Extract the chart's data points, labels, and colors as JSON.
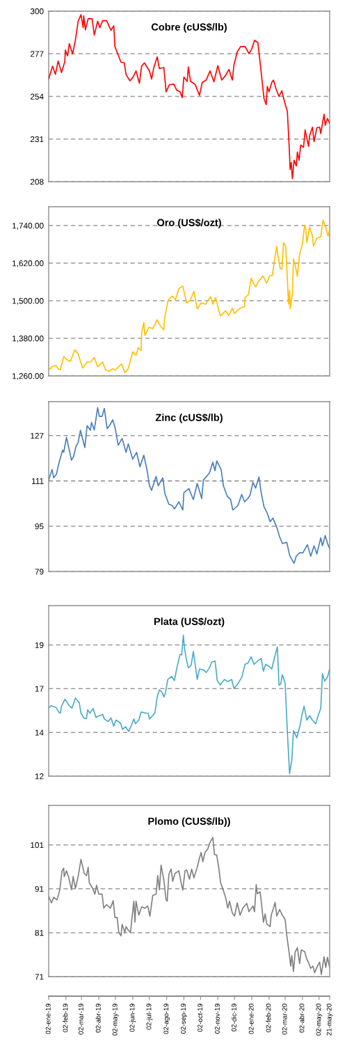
{
  "chart_data": [
    {
      "type": "line",
      "title": "Cobre (cUS$/lb)",
      "xlim": [
        "2019-01-02",
        "2020-05-21"
      ],
      "ylim": [
        208,
        300
      ],
      "yticks": [
        208,
        231,
        254,
        277,
        300
      ],
      "grid": "y",
      "tick_labels": "y",
      "x": [
        "2019-01-02",
        "2019-01-09",
        "2019-01-14",
        "2019-01-19",
        "2019-01-25",
        "2019-01-31",
        "2019-02-01",
        "2019-02-05",
        "2019-02-08",
        "2019-02-14",
        "2019-02-19",
        "2019-02-24",
        "2019-03-01",
        "2019-03-05",
        "2019-03-06",
        "2019-03-09",
        "2019-03-14",
        "2019-03-21",
        "2019-03-25",
        "2019-03-31",
        "2019-04-04",
        "2019-04-09",
        "2019-04-16",
        "2019-04-24",
        "2019-04-29",
        "2019-05-01",
        "2019-05-06",
        "2019-05-12",
        "2019-05-18",
        "2019-05-21",
        "2019-05-28",
        "2019-06-03",
        "2019-06-08",
        "2019-06-14",
        "2019-06-18",
        "2019-06-23",
        "2019-07-02",
        "2019-07-06",
        "2019-07-10",
        "2019-07-16",
        "2019-07-20",
        "2019-07-28",
        "2019-08-01",
        "2019-08-07",
        "2019-08-15",
        "2019-08-20",
        "2019-08-26",
        "2019-08-30",
        "2019-09-02",
        "2019-09-08",
        "2019-09-10",
        "2019-09-14",
        "2019-09-22",
        "2019-09-30",
        "2019-10-05",
        "2019-10-12",
        "2019-10-19",
        "2019-10-26",
        "2019-11-02",
        "2019-11-09",
        "2019-11-16",
        "2019-11-22",
        "2019-11-28",
        "2019-12-01",
        "2019-12-07",
        "2019-12-13",
        "2019-12-21",
        "2019-12-28",
        "2020-01-02",
        "2020-01-07",
        "2020-01-13",
        "2020-01-18",
        "2020-01-24",
        "2020-01-28",
        "2020-01-30",
        "2020-02-02",
        "2020-02-07",
        "2020-02-10",
        "2020-02-15",
        "2020-02-20",
        "2020-02-25",
        "2020-03-01",
        "2020-03-06",
        "2020-03-09",
        "2020-03-11",
        "2020-03-13",
        "2020-03-15",
        "2020-03-18",
        "2020-03-22",
        "2020-03-24",
        "2020-03-27",
        "2020-03-30",
        "2020-04-04",
        "2020-04-07",
        "2020-04-13",
        "2020-04-15",
        "2020-04-20",
        "2020-04-23",
        "2020-04-28",
        "2020-05-03",
        "2020-05-05",
        "2020-05-11",
        "2020-05-13",
        "2020-05-17",
        "2020-05-21"
      ],
      "series": [
        {
          "color": "#ff0000",
          "values": [
            263.4,
            270.3,
            265.9,
            273.1,
            266.9,
            272.8,
            279.0,
            275.9,
            282.5,
            276.9,
            284.4,
            294.6,
            298.1,
            291.1,
            297.4,
            289.9,
            295.9,
            295.9,
            287.1,
            294.6,
            291.1,
            294.9,
            294.9,
            289.6,
            292.1,
            280.9,
            277.1,
            272.4,
            272.1,
            265.9,
            262.4,
            264.6,
            267.8,
            261.1,
            270.3,
            272.1,
            267.8,
            263.4,
            269.6,
            275.3,
            269.0,
            269.6,
            256.5,
            260.3,
            260.6,
            257.4,
            256.5,
            253.4,
            264.4,
            262.1,
            269.9,
            262.1,
            260.6,
            254.6,
            261.5,
            262.8,
            267.8,
            261.9,
            270.6,
            262.8,
            265.3,
            268.6,
            262.8,
            270.9,
            278.1,
            280.9,
            280.9,
            277.1,
            279.6,
            284.3,
            283.0,
            269.6,
            252.8,
            249.6,
            259.4,
            256.5,
            261.5,
            262.8,
            257.8,
            254.0,
            257.1,
            250.9,
            245.9,
            228.4,
            214.6,
            218.4,
            209.6,
            219.6,
            216.5,
            224.0,
            219.6,
            227.8,
            226.5,
            235.9,
            227.1,
            232.8,
            237.4,
            229.6,
            237.1,
            237.4,
            234.0,
            244.4,
            238.4,
            242.1,
            239.6
          ]
        }
      ]
    },
    {
      "type": "line",
      "title": "Oro (US$/ozt)",
      "xlim": [
        "2019-01-02",
        "2020-05-21"
      ],
      "ylim": [
        1260,
        1800
      ],
      "yticks": [
        {
          "value": 1260,
          "label": "1,260.00"
        },
        {
          "value": 1380,
          "label": "1,380.00"
        },
        {
          "value": 1500,
          "label": "1,500.00"
        },
        {
          "value": 1620,
          "label": "1,620.00"
        },
        {
          "value": 1740,
          "label": "1,740.00"
        }
      ],
      "grid": "y",
      "tick_labels": "y",
      "x": [
        "2019-01-02",
        "2019-01-04",
        "2019-01-08",
        "2019-01-15",
        "2019-01-20",
        "2019-01-23",
        "2019-01-29",
        "2019-02-04",
        "2019-02-10",
        "2019-02-18",
        "2019-02-24",
        "2019-03-04",
        "2019-03-12",
        "2019-03-19",
        "2019-03-25",
        "2019-03-31",
        "2019-04-09",
        "2019-04-14",
        "2019-04-21",
        "2019-04-27",
        "2019-05-01",
        "2019-05-13",
        "2019-05-19",
        "2019-05-25",
        "2019-06-02",
        "2019-06-08",
        "2019-06-12",
        "2019-06-17",
        "2019-06-18",
        "2019-06-22",
        "2019-06-24",
        "2019-07-01",
        "2019-07-08",
        "2019-07-16",
        "2019-07-22",
        "2019-07-28",
        "2019-07-29",
        "2019-08-04",
        "2019-08-06",
        "2019-08-12",
        "2019-08-18",
        "2019-08-24",
        "2019-08-31",
        "2019-09-07",
        "2019-09-13",
        "2019-09-20",
        "2019-09-26",
        "2019-10-03",
        "2019-10-11",
        "2019-10-20",
        "2019-10-24",
        "2019-10-29",
        "2019-11-04",
        "2019-11-07",
        "2019-11-16",
        "2019-11-22",
        "2019-11-28",
        "2019-12-02",
        "2019-12-12",
        "2019-12-20",
        "2019-12-21",
        "2019-12-27",
        "2020-01-01",
        "2020-01-05",
        "2020-01-09",
        "2020-01-13",
        "2020-01-22",
        "2020-01-29",
        "2020-02-03",
        "2020-02-08",
        "2020-02-11",
        "2020-02-16",
        "2020-02-18",
        "2020-02-22",
        "2020-02-25",
        "2020-02-28",
        "2020-03-03",
        "2020-03-06",
        "2020-03-08",
        "2020-03-10",
        "2020-03-11",
        "2020-03-15",
        "2020-03-17",
        "2020-03-20",
        "2020-03-24",
        "2020-03-28",
        "2020-04-02",
        "2020-04-06",
        "2020-04-08",
        "2020-04-10",
        "2020-04-15",
        "2020-04-20",
        "2020-04-22",
        "2020-04-28",
        "2020-05-05",
        "2020-05-09",
        "2020-05-14",
        "2020-05-18",
        "2020-05-21"
      ],
      "series": [
        {
          "color": "#ffc000",
          "values": [
            1289,
            1281,
            1290,
            1293,
            1281,
            1280,
            1322,
            1311,
            1307,
            1343,
            1330,
            1285,
            1304,
            1305,
            1319,
            1289,
            1304,
            1280,
            1274,
            1283,
            1278,
            1298,
            1270,
            1283,
            1337,
            1326,
            1350,
            1341,
            1396,
            1431,
            1389,
            1415,
            1411,
            1439,
            1419,
            1407,
            1441,
            1496,
            1505,
            1515,
            1504,
            1539,
            1547,
            1493,
            1500,
            1530,
            1474,
            1493,
            1489,
            1513,
            1489,
            1510,
            1467,
            1452,
            1468,
            1453,
            1476,
            1459,
            1476,
            1481,
            1511,
            1519,
            1572,
            1556,
            1544,
            1559,
            1579,
            1556,
            1579,
            1581,
            1622,
            1673,
            1644,
            1604,
            1600,
            1685,
            1674,
            1570,
            1489,
            1533,
            1474,
            1522,
            1633,
            1615,
            1578,
            1648,
            1681,
            1741,
            1730,
            1685,
            1735,
            1707,
            1674,
            1700,
            1704,
            1757,
            1735,
            1707,
            1727
          ]
        }
      ]
    },
    {
      "type": "line",
      "title": "Zinc (cUS$/lb)",
      "xlim": [
        "2019-01-02",
        "2020-05-21"
      ],
      "ylim": [
        79,
        139
      ],
      "yticks": [
        79,
        95,
        111,
        127
      ],
      "grid": "y",
      "tick_labels": "y",
      "x": [
        "2019-01-02",
        "2019-01-08",
        "2019-01-11",
        "2019-01-16",
        "2019-01-20",
        "2019-01-27",
        "2019-01-29",
        "2019-02-03",
        "2019-02-08",
        "2019-02-12",
        "2019-02-16",
        "2019-02-20",
        "2019-02-24",
        "2019-02-28",
        "2019-03-08",
        "2019-03-12",
        "2019-03-18",
        "2019-03-20",
        "2019-03-25",
        "2019-03-31",
        "2019-04-03",
        "2019-04-08",
        "2019-04-12",
        "2019-04-17",
        "2019-04-22",
        "2019-04-27",
        "2019-05-01",
        "2019-05-07",
        "2019-05-14",
        "2019-05-21",
        "2019-05-25",
        "2019-06-02",
        "2019-06-09",
        "2019-06-15",
        "2019-06-22",
        "2019-06-28",
        "2019-07-02",
        "2019-07-06",
        "2019-07-14",
        "2019-07-18",
        "2019-07-26",
        "2019-07-30",
        "2019-08-06",
        "2019-08-12",
        "2019-08-16",
        "2019-08-24",
        "2019-08-31",
        "2019-09-02",
        "2019-09-11",
        "2019-09-19",
        "2019-09-26",
        "2019-10-04",
        "2019-10-07",
        "2019-10-18",
        "2019-10-24",
        "2019-10-28",
        "2019-10-31",
        "2019-11-08",
        "2019-11-12",
        "2019-11-19",
        "2019-11-25",
        "2019-11-29",
        "2019-12-08",
        "2019-12-15",
        "2019-12-20",
        "2019-12-26",
        "2019-12-30",
        "2020-01-04",
        "2020-01-09",
        "2020-01-15",
        "2020-01-19",
        "2020-01-24",
        "2020-01-30",
        "2020-02-04",
        "2020-02-09",
        "2020-02-16",
        "2020-02-21",
        "2020-02-26",
        "2020-03-05",
        "2020-03-10",
        "2020-03-13",
        "2020-03-18",
        "2020-03-22",
        "2020-03-28",
        "2020-04-03",
        "2020-04-11",
        "2020-04-17",
        "2020-04-23",
        "2020-04-28",
        "2020-05-05",
        "2020-05-08",
        "2020-05-13",
        "2020-05-17",
        "2020-05-21"
      ],
      "series": [
        {
          "color": "#4a7ebb",
          "values": [
            111.3,
            115.0,
            112.1,
            113.4,
            117.0,
            121.9,
            121.1,
            126.4,
            121.9,
            118.3,
            119.7,
            123.2,
            124.6,
            128.9,
            122.8,
            130.5,
            128.9,
            131.7,
            129.0,
            136.9,
            133.8,
            133.8,
            136.6,
            129.5,
            130.7,
            132.6,
            130.1,
            123.6,
            126.0,
            121.1,
            124.1,
            118.7,
            121.1,
            116.0,
            120.1,
            114.6,
            109.4,
            107.7,
            112.6,
            109.3,
            112.1,
            106.4,
            102.8,
            102.3,
            101.1,
            103.6,
            100.7,
            106.8,
            108.3,
            104.4,
            110.1,
            104.8,
            111.3,
            113.8,
            117.6,
            114.6,
            118.1,
            115.0,
            109.3,
            105.6,
            104.4,
            100.7,
            102.3,
            106.2,
            103.6,
            104.8,
            106.0,
            110.5,
            108.5,
            112.4,
            106.8,
            101.9,
            99.5,
            96.6,
            97.9,
            94.6,
            91.3,
            88.9,
            89.3,
            84.8,
            83.6,
            81.9,
            84.4,
            85.6,
            85.6,
            88.5,
            84.4,
            88.1,
            85.2,
            90.9,
            88.1,
            91.7,
            89.0,
            87.1
          ]
        }
      ]
    },
    {
      "type": "line",
      "title": "Plata (US$/ozt)",
      "xlim": [
        "2019-01-02",
        "2020-05-21"
      ],
      "ylim": [
        12,
        21.1
      ],
      "yticks": [
        12,
        {
          "value": 14.33,
          "label": "14"
        },
        {
          "value": 16.67,
          "label": "17"
        },
        19
      ],
      "grid": "y",
      "tick_labels": "y",
      "x": [
        "2019-01-02",
        "2019-01-06",
        "2019-01-15",
        "2019-01-20",
        "2019-01-23",
        "2019-01-25",
        "2019-01-31",
        "2019-02-04",
        "2019-02-07",
        "2019-02-13",
        "2019-02-19",
        "2019-02-26",
        "2019-03-01",
        "2019-03-07",
        "2019-03-11",
        "2019-03-13",
        "2019-03-17",
        "2019-03-23",
        "2019-03-28",
        "2019-04-02",
        "2019-04-09",
        "2019-04-12",
        "2019-04-19",
        "2019-04-24",
        "2019-04-29",
        "2019-05-03",
        "2019-05-11",
        "2019-05-15",
        "2019-05-20",
        "2019-05-26",
        "2019-05-31",
        "2019-06-04",
        "2019-06-07",
        "2019-06-13",
        "2019-06-17",
        "2019-06-26",
        "2019-06-30",
        "2019-07-02",
        "2019-07-08",
        "2019-07-12",
        "2019-07-16",
        "2019-07-20",
        "2019-07-25",
        "2019-07-28",
        "2019-07-31",
        "2019-08-04",
        "2019-08-11",
        "2019-08-16",
        "2019-08-20",
        "2019-08-26",
        "2019-08-29",
        "2019-09-01",
        "2019-09-03",
        "2019-09-07",
        "2019-09-10",
        "2019-09-15",
        "2019-09-19",
        "2019-09-26",
        "2019-09-30",
        "2019-10-08",
        "2019-10-12",
        "2019-10-18",
        "2019-10-22",
        "2019-10-28",
        "2019-11-01",
        "2019-11-06",
        "2019-11-14",
        "2019-11-20",
        "2019-11-27",
        "2019-12-01",
        "2019-12-09",
        "2019-12-15",
        "2019-12-21",
        "2019-12-26",
        "2020-01-01",
        "2020-01-06",
        "2020-01-13",
        "2020-01-19",
        "2020-01-23",
        "2020-01-27",
        "2020-02-03",
        "2020-02-07",
        "2020-02-12",
        "2020-02-17",
        "2020-02-20",
        "2020-02-23",
        "2020-02-26",
        "2020-03-02",
        "2020-03-06",
        "2020-03-10",
        "2020-03-14",
        "2020-03-17",
        "2020-03-20",
        "2020-03-23",
        "2020-03-29",
        "2020-04-01",
        "2020-04-05",
        "2020-04-10",
        "2020-04-15",
        "2020-04-20",
        "2020-04-26",
        "2020-05-01",
        "2020-05-05",
        "2020-05-08",
        "2020-05-12",
        "2020-05-17",
        "2020-05-21"
      ],
      "series": [
        {
          "color": "#4bacc6",
          "values": [
            15.63,
            15.76,
            15.67,
            15.42,
            15.36,
            15.73,
            16.1,
            15.95,
            15.79,
            15.63,
            16.17,
            15.92,
            15.36,
            15.08,
            15.08,
            15.54,
            15.36,
            15.61,
            15.13,
            15.21,
            15.3,
            15.05,
            14.92,
            15.11,
            14.67,
            14.99,
            14.84,
            14.49,
            14.64,
            14.39,
            14.74,
            15.05,
            14.8,
            14.99,
            15.42,
            15.36,
            15.36,
            15.05,
            15.23,
            15.38,
            16.23,
            16.6,
            16.48,
            16.23,
            16.45,
            17.16,
            17.32,
            17.1,
            17.72,
            18.49,
            18.47,
            19.52,
            18.84,
            18.15,
            17.78,
            17.91,
            18.65,
            17.16,
            17.72,
            17.66,
            17.53,
            17.78,
            18.09,
            18.15,
            17.1,
            16.87,
            17.16,
            17.04,
            17.16,
            16.67,
            16.97,
            17.28,
            17.97,
            18.03,
            18.37,
            17.97,
            18.15,
            18.28,
            17.6,
            17.97,
            17.84,
            17.72,
            18.34,
            18.9,
            16.85,
            16.91,
            17.41,
            16.97,
            14.36,
            12.13,
            12.87,
            14.43,
            14.24,
            14.05,
            14.74,
            15.23,
            15.73,
            14.99,
            15.23,
            14.99,
            14.8,
            15.3,
            15.61,
            17.47,
            17.07,
            17.28,
            17.72
          ]
        }
      ]
    },
    {
      "type": "line",
      "title": "Plomo (CUS$/lb))",
      "xlim": [
        "2019-01-02",
        "2020-05-21"
      ],
      "ylim": [
        71,
        110
      ],
      "yticks": [
        71,
        81,
        91,
        101
      ],
      "grid": "y",
      "xticks": [
        {
          "value": "2019-01-02",
          "label": "02-ene-19"
        },
        {
          "value": "2019-02-02",
          "label": "02-feb-19"
        },
        {
          "value": "2019-03-02",
          "label": "02-mar-19"
        },
        {
          "value": "2019-04-02",
          "label": "02-abr-19"
        },
        {
          "value": "2019-05-02",
          "label": "02-may-19"
        },
        {
          "value": "2019-06-02",
          "label": "02-jun-19"
        },
        {
          "value": "2019-07-02",
          "label": "02-jul-19"
        },
        {
          "value": "2019-08-02",
          "label": "02-ago-19"
        },
        {
          "value": "2019-09-02",
          "label": "02-sep-19"
        },
        {
          "value": "2019-10-02",
          "label": "02-oct-19"
        },
        {
          "value": "2019-11-02",
          "label": "02-nov-19"
        },
        {
          "value": "2019-12-02",
          "label": "02-dic-19"
        },
        {
          "value": "2020-01-02",
          "label": "02-ene-20"
        },
        {
          "value": "2020-02-02",
          "label": "02-feb-20"
        },
        {
          "value": "2020-03-02",
          "label": "02-mar-20"
        },
        {
          "value": "2020-04-02",
          "label": "02-abr-20"
        },
        {
          "value": "2020-05-02",
          "label": "02-may-20"
        },
        {
          "value": "2020-05-21",
          "label": "21-may-20"
        }
      ],
      "x": [
        "2019-01-02",
        "2019-01-07",
        "2019-01-11",
        "2019-01-17",
        "2019-01-22",
        "2019-01-26",
        "2019-01-29",
        "2019-01-30",
        "2019-02-03",
        "2019-02-07",
        "2019-02-12",
        "2019-02-15",
        "2019-02-19",
        "2019-02-24",
        "2019-03-01",
        "2019-03-07",
        "2019-03-11",
        "2019-03-14",
        "2019-03-16",
        "2019-03-22",
        "2019-03-26",
        "2019-03-29",
        "2019-04-02",
        "2019-04-08",
        "2019-04-11",
        "2019-04-16",
        "2019-04-23",
        "2019-04-28",
        "2019-05-01",
        "2019-05-05",
        "2019-05-08",
        "2019-05-12",
        "2019-05-14",
        "2019-05-19",
        "2019-05-21",
        "2019-05-25",
        "2019-05-29",
        "2019-06-04",
        "2019-06-06",
        "2019-06-08",
        "2019-06-13",
        "2019-06-18",
        "2019-06-24",
        "2019-06-29",
        "2019-07-03",
        "2019-07-08",
        "2019-07-14",
        "2019-07-17",
        "2019-07-20",
        "2019-07-23",
        "2019-07-28",
        "2019-08-01",
        "2019-08-03",
        "2019-08-06",
        "2019-08-10",
        "2019-08-13",
        "2019-08-17",
        "2019-08-24",
        "2019-08-28",
        "2019-08-31",
        "2019-09-04",
        "2019-09-07",
        "2019-09-12",
        "2019-09-16",
        "2019-09-20",
        "2019-09-26",
        "2019-09-30",
        "2019-10-03",
        "2019-10-06",
        "2019-10-10",
        "2019-10-15",
        "2019-10-18",
        "2019-10-24",
        "2019-10-27",
        "2019-10-31",
        "2019-11-04",
        "2019-11-07",
        "2019-11-12",
        "2019-11-16",
        "2019-11-20",
        "2019-11-23",
        "2019-11-28",
        "2019-12-02",
        "2019-12-07",
        "2019-12-12",
        "2019-12-17",
        "2019-12-24",
        "2019-12-28",
        "2020-01-04",
        "2020-01-07",
        "2020-01-10",
        "2020-01-12",
        "2020-01-17",
        "2020-01-20",
        "2020-01-23",
        "2020-01-26",
        "2020-01-29",
        "2020-02-04",
        "2020-02-06",
        "2020-02-10",
        "2020-02-13",
        "2020-02-16",
        "2020-02-21",
        "2020-02-26",
        "2020-03-02",
        "2020-03-05",
        "2020-03-09",
        "2020-03-12",
        "2020-03-14",
        "2020-03-17",
        "2020-03-20",
        "2020-03-24",
        "2020-03-28",
        "2020-03-31",
        "2020-04-06",
        "2020-04-10",
        "2020-04-13",
        "2020-04-17",
        "2020-04-21",
        "2020-04-24",
        "2020-04-29",
        "2020-05-03",
        "2020-05-06",
        "2020-05-11",
        "2020-05-14",
        "2020-05-17",
        "2020-05-21"
      ],
      "series": [
        {
          "color": "#808080",
          "values": [
            89.3,
            87.8,
            89.1,
            88.5,
            90.8,
            95.1,
            95.7,
            93.8,
            95.1,
            93.6,
            90.8,
            93.8,
            91.1,
            93.8,
            97.7,
            94.5,
            94.0,
            95.9,
            92.4,
            91.1,
            89.8,
            91.8,
            89.8,
            89.8,
            86.6,
            87.4,
            86.6,
            88.3,
            84.5,
            84.5,
            81.1,
            80.3,
            82.9,
            81.1,
            82.4,
            81.6,
            81.1,
            88.2,
            83.4,
            88.2,
            85.0,
            86.9,
            86.6,
            87.1,
            84.8,
            89.5,
            89.8,
            94.0,
            90.8,
            96.4,
            93.0,
            88.5,
            88.2,
            94.3,
            95.5,
            92.7,
            94.5,
            95.1,
            92.4,
            90.7,
            95.1,
            95.3,
            93.2,
            95.5,
            93.5,
            95.9,
            98.0,
            99.3,
            97.2,
            99.3,
            100.1,
            101.3,
            102.7,
            98.8,
            98.7,
            95.6,
            92.4,
            90.6,
            89.0,
            86.6,
            88.2,
            85.5,
            84.8,
            87.8,
            85.0,
            86.6,
            87.7,
            85.8,
            87.1,
            85.8,
            92.0,
            89.9,
            90.3,
            87.1,
            83.4,
            85.3,
            83.0,
            82.4,
            85.0,
            86.6,
            87.9,
            84.8,
            86.3,
            85.0,
            84.0,
            80.3,
            76.6,
            73.4,
            75.8,
            72.2,
            76.6,
            77.6,
            74.0,
            77.1,
            76.7,
            75.0,
            74.2,
            72.9,
            73.4,
            71.9,
            73.4,
            74.3,
            71.5,
            75.5,
            73.1,
            75.4,
            73.1
          ]
        }
      ]
    }
  ]
}
